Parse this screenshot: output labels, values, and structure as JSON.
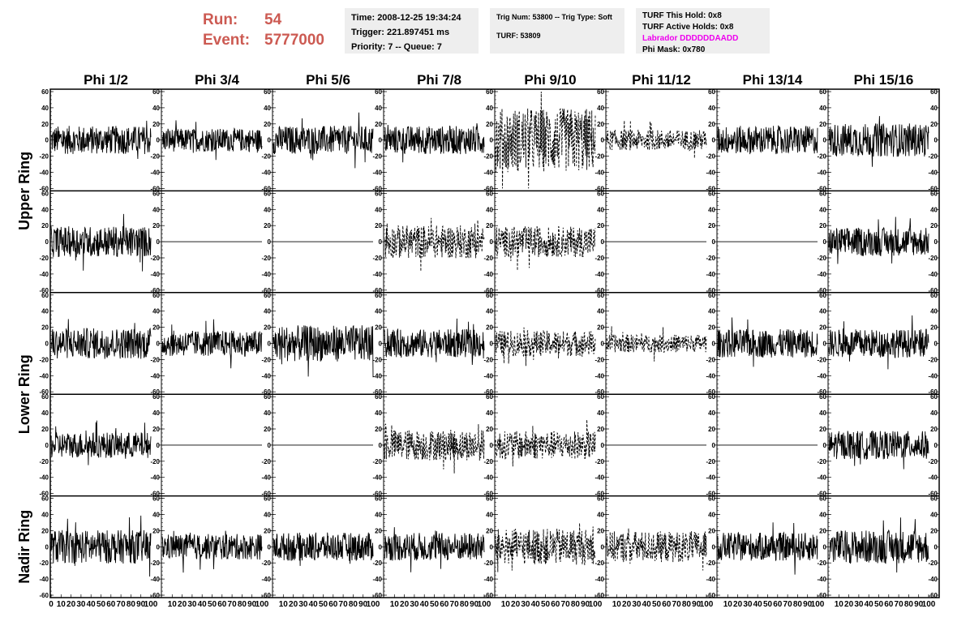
{
  "header": {
    "run_label": "Run:",
    "run_value": "54",
    "event_label": "Event:",
    "event_value": "5777000"
  },
  "info_time": {
    "time": "Time: 2008-12-25 19:34:24",
    "trigger": "Trigger: 221.897451 ms",
    "priority": "Priority: 7 -- Queue: 7"
  },
  "info_trig": {
    "trig": "Trig Num: 53800 -- Trig Type: Soft",
    "turf": "TURF: 53809"
  },
  "info_turf": {
    "this_hold": "TURF This Hold: 0x8",
    "active_holds": "TURF Active Holds: 0x8",
    "labrador": "Labrador DDDDDDAADD",
    "phi_mask": "Phi Mask: 0x780"
  },
  "colors": {
    "run_text": "#cc5a52",
    "labrador_text": "#ee00ee",
    "info_bg": "#eeeeee"
  },
  "chart_data": {
    "type": "line",
    "columns": [
      "Phi 1/2",
      "Phi 3/4",
      "Phi 5/6",
      "Phi 7/8",
      "Phi 9/10",
      "Phi 11/12",
      "Phi 13/14",
      "Phi 15/16"
    ],
    "ring_labels": [
      "Upper Ring",
      "Lower Ring",
      "Nadir Ring"
    ],
    "rows": 5,
    "xlim": [
      0,
      100
    ],
    "ylim": [
      -60,
      60
    ],
    "x_ticks": [
      "0",
      "10",
      "20",
      "30",
      "40",
      "50",
      "60",
      "70",
      "80",
      "90",
      "100"
    ],
    "y_ticks": [
      "60",
      "40",
      "20",
      "0",
      "-20",
      "-40",
      "-60"
    ],
    "grid": false,
    "panels": [
      [
        {
          "amp": 11,
          "dash": false
        },
        {
          "amp": 9,
          "dash": false
        },
        {
          "amp": 11,
          "dash": false
        },
        {
          "amp": 11,
          "dash": false
        },
        {
          "amp": 25,
          "dash": true
        },
        {
          "amp": 8,
          "dash": true
        },
        {
          "amp": 11,
          "dash": false
        },
        {
          "amp": 13,
          "dash": false
        }
      ],
      [
        {
          "amp": 12,
          "dash": false
        },
        {
          "amp": 0,
          "dash": false
        },
        {
          "amp": 0,
          "dash": false
        },
        {
          "amp": 13,
          "dash": true
        },
        {
          "amp": 12,
          "dash": true
        },
        {
          "amp": 0,
          "dash": false
        },
        {
          "amp": 0,
          "dash": false
        },
        {
          "amp": 11,
          "dash": false
        }
      ],
      [
        {
          "amp": 12,
          "dash": false
        },
        {
          "amp": 10,
          "dash": false
        },
        {
          "amp": 14,
          "dash": false
        },
        {
          "amp": 11,
          "dash": false
        },
        {
          "amp": 10,
          "dash": true
        },
        {
          "amp": 7,
          "dash": true
        },
        {
          "amp": 11,
          "dash": false
        },
        {
          "amp": 11,
          "dash": false
        }
      ],
      [
        {
          "amp": 10,
          "dash": false
        },
        {
          "amp": 0,
          "dash": false
        },
        {
          "amp": 0,
          "dash": false
        },
        {
          "amp": 12,
          "dash": true
        },
        {
          "amp": 11,
          "dash": true
        },
        {
          "amp": 0,
          "dash": false
        },
        {
          "amp": 0,
          "dash": false
        },
        {
          "amp": 11,
          "dash": false
        }
      ],
      [
        {
          "amp": 13,
          "dash": false
        },
        {
          "amp": 10,
          "dash": false
        },
        {
          "amp": 11,
          "dash": false
        },
        {
          "amp": 11,
          "dash": false
        },
        {
          "amp": 14,
          "dash": true
        },
        {
          "amp": 12,
          "dash": true
        },
        {
          "amp": 11,
          "dash": false
        },
        {
          "amp": 13,
          "dash": false
        }
      ]
    ]
  }
}
